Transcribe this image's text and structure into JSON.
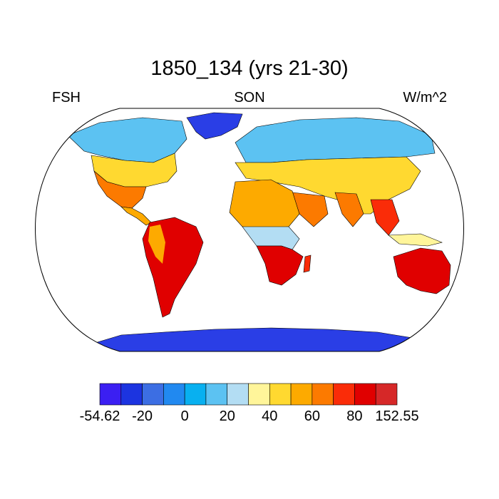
{
  "title": "1850_134 (yrs 21-30)",
  "left_label": "FSH",
  "center_label": "SON",
  "right_label": "W/m^2",
  "colorbar": {
    "colors": [
      "#3b1ff2",
      "#1c34e0",
      "#3c6ee3",
      "#2189f0",
      "#08b0f0",
      "#5cc2f2",
      "#b3ddf3",
      "#fff59a",
      "#ffd930",
      "#fdaa00",
      "#fc7a00",
      "#fa2c08",
      "#e00000",
      "#d62828"
    ],
    "labels": [
      "-54.62",
      "-20",
      "0",
      "20",
      "40",
      "60",
      "80",
      "152.55"
    ]
  }
}
